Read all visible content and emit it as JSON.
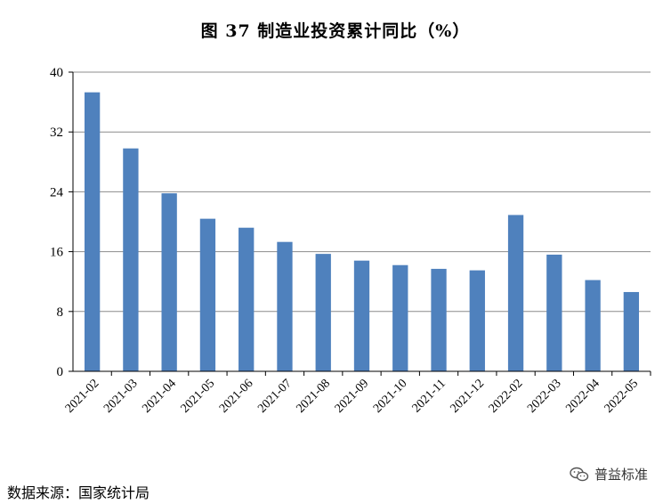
{
  "chart_data": {
    "type": "bar",
    "title": "图 37  制造业投资累计同比（%）",
    "categories": [
      "2021-02",
      "2021-03",
      "2021-04",
      "2021-05",
      "2021-06",
      "2021-07",
      "2021-08",
      "2021-09",
      "2021-10",
      "2021-11",
      "2021-12",
      "2022-02",
      "2022-03",
      "2022-04",
      "2022-05"
    ],
    "values": [
      37.3,
      29.8,
      23.8,
      20.4,
      19.2,
      17.3,
      15.7,
      14.8,
      14.2,
      13.7,
      13.5,
      20.9,
      15.6,
      12.2,
      10.6
    ],
    "ylim": [
      0,
      40
    ],
    "yticks": [
      0,
      8,
      16,
      24,
      32,
      40
    ],
    "xlabel": "",
    "ylabel": "",
    "grid": true,
    "bar_color": "#4F81BD"
  },
  "footer": {
    "source": "数据来源：国家统计局",
    "watermark": "普益标准"
  }
}
